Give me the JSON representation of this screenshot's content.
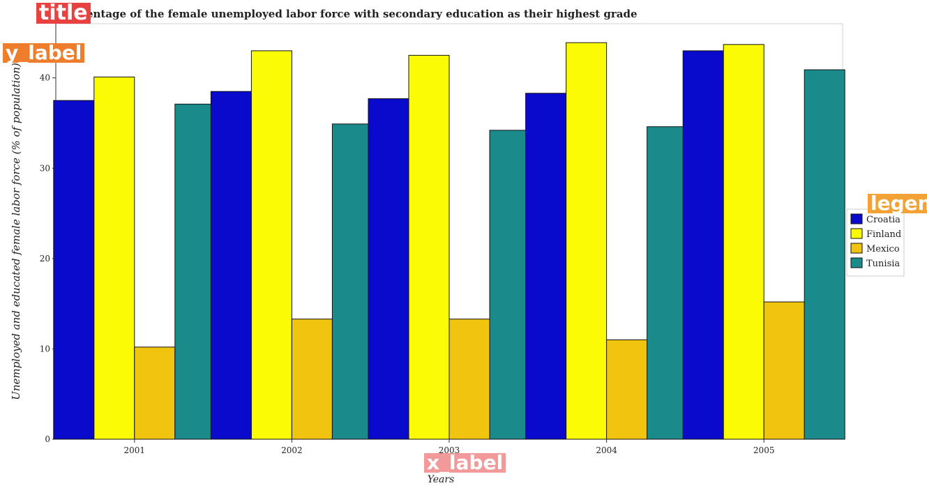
{
  "chart_data": {
    "type": "bar",
    "title": "Percentage of the female unemployed labor force with secondary education as their highest grade",
    "xlabel": "Years",
    "ylabel": "Unemployed and educated female labor force (% of population)",
    "categories": [
      "2001",
      "2002",
      "2003",
      "2004",
      "2005"
    ],
    "ylim": [
      0,
      46
    ],
    "yticks": [
      0,
      10,
      20,
      30,
      40
    ],
    "series": [
      {
        "name": "Croatia",
        "color": "#0a0acd",
        "values": [
          37.5,
          38.5,
          37.7,
          38.3,
          43.0
        ]
      },
      {
        "name": "Finland",
        "color": "#fbfb05",
        "values": [
          40.1,
          43.0,
          42.5,
          43.9,
          43.7
        ]
      },
      {
        "name": "Mexico",
        "color": "#f1c40f",
        "values": [
          10.2,
          13.3,
          13.3,
          11.0,
          15.2
        ]
      },
      {
        "name": "Tunisia",
        "color": "#1b8a8a",
        "values": [
          37.1,
          34.9,
          34.2,
          34.6,
          40.9
        ]
      }
    ],
    "legend_position": "right",
    "grid": false
  },
  "overlay_tags": {
    "title": "title",
    "ylabel": "y_label",
    "xlabel": "x_label",
    "legend": "legen"
  }
}
